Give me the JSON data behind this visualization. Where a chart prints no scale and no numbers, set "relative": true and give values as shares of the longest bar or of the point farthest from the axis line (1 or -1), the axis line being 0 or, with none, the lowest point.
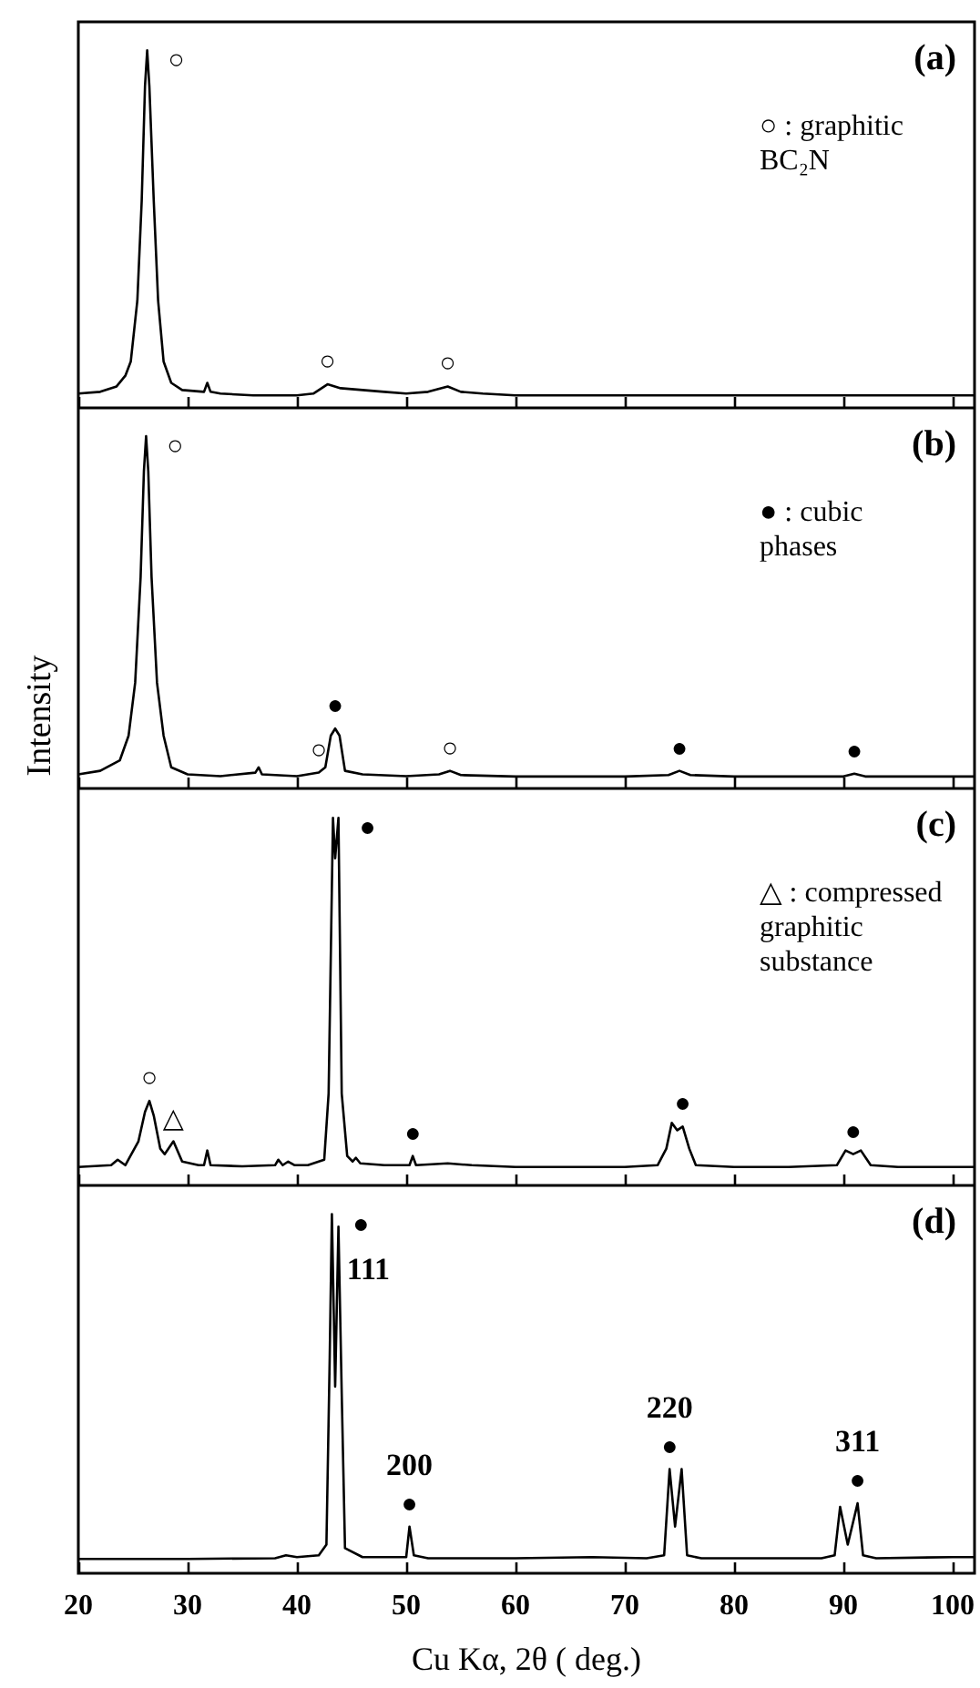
{
  "chart_data": [
    {
      "type": "line",
      "relative": true,
      "xlim": [
        20,
        102
      ],
      "xticks": [
        20,
        30,
        40,
        50,
        60,
        70,
        80,
        90,
        100
      ],
      "tick_labels": false,
      "x": [
        20,
        22,
        23.5,
        24.3,
        24.8,
        25.4,
        25.8,
        26.1,
        26.3,
        26.5,
        26.9,
        27.3,
        27.8,
        28.5,
        29.5,
        31.5,
        31.8,
        32.1,
        33,
        36,
        40,
        41.5,
        42.8,
        44,
        46,
        48,
        50,
        52,
        53.8,
        55,
        57,
        60,
        65,
        70,
        75,
        80,
        85,
        90,
        95,
        100,
        102
      ],
      "series": [
        {
          "color": "#000000",
          "values": [
            0.04,
            0.045,
            0.06,
            0.09,
            0.13,
            0.3,
            0.58,
            0.9,
            1,
            0.9,
            0.58,
            0.3,
            0.13,
            0.07,
            0.05,
            0.045,
            0.07,
            0.045,
            0.04,
            0.035,
            0.035,
            0.04,
            0.066,
            0.055,
            0.05,
            0.045,
            0.04,
            0.045,
            0.06,
            0.045,
            0.04,
            0.035,
            0.035,
            0.035,
            0.035,
            0.035,
            0.035,
            0.035,
            0.035,
            0.035,
            0.035
          ]
        }
      ],
      "annotations": [
        "(a)",
        "○ : graphitic BC₂N",
        {
          "text": "○",
          "x": 26.3,
          "y": 1
        },
        {
          "text": "○",
          "x": 42.8,
          "y": 0.066
        },
        {
          "text": "○",
          "x": 53.8,
          "y": 0.06
        }
      ]
    },
    {
      "type": "line",
      "relative": true,
      "xlim": [
        20,
        102
      ],
      "xticks": [
        20,
        30,
        40,
        50,
        60,
        70,
        80,
        90,
        100
      ],
      "tick_labels": false,
      "ylabel": "Intensity",
      "x": [
        20,
        22,
        23.8,
        24.6,
        25.2,
        25.7,
        26.0,
        26.2,
        26.4,
        26.7,
        27.2,
        27.8,
        28.5,
        30,
        33,
        36.2,
        36.5,
        36.8,
        40,
        42,
        42.6,
        43.1,
        43.5,
        43.9,
        44.4,
        46,
        50,
        53,
        54,
        55,
        60,
        65,
        70,
        74,
        75,
        76,
        80,
        85,
        90,
        91,
        92,
        95,
        100,
        102
      ],
      "series": [
        {
          "color": "#000000",
          "values": [
            0.04,
            0.05,
            0.08,
            0.15,
            0.3,
            0.6,
            0.9,
            1,
            0.9,
            0.6,
            0.3,
            0.15,
            0.06,
            0.04,
            0.035,
            0.045,
            0.06,
            0.04,
            0.035,
            0.045,
            0.06,
            0.15,
            0.17,
            0.15,
            0.05,
            0.04,
            0.035,
            0.04,
            0.05,
            0.038,
            0.034,
            0.034,
            0.034,
            0.038,
            0.05,
            0.038,
            0.034,
            0.034,
            0.034,
            0.042,
            0.034,
            0.034,
            0.034,
            0.034
          ]
        }
      ],
      "annotations": [
        "(b)",
        "● : cubic phases",
        {
          "text": "○",
          "x": 26.2,
          "y": 1
        },
        {
          "text": "○",
          "x": 42,
          "y": 0.045
        },
        {
          "text": "●",
          "x": 43.5,
          "y": 0.17
        },
        {
          "text": "○",
          "x": 54,
          "y": 0.05
        },
        {
          "text": "●",
          "x": 75,
          "y": 0.05
        },
        {
          "text": "●",
          "x": 91,
          "y": 0.042
        }
      ]
    },
    {
      "type": "line",
      "relative": true,
      "xlim": [
        20,
        102
      ],
      "xticks": [
        20,
        30,
        40,
        50,
        60,
        70,
        80,
        90,
        100
      ],
      "tick_labels": false,
      "x": [
        20,
        23,
        23.6,
        24.3,
        25.5,
        26.1,
        26.5,
        26.9,
        27.5,
        27.9,
        28.7,
        29.5,
        31,
        31.5,
        31.8,
        32.1,
        35,
        38,
        38.3,
        38.7,
        39.2,
        39.8,
        41,
        42.5,
        42.9,
        43.3,
        43.5,
        43.8,
        44.1,
        44.6,
        45.1,
        45.4,
        45.8,
        48,
        50.3,
        50.6,
        50.9,
        53.8,
        56,
        60,
        65,
        70,
        73,
        73.8,
        74.3,
        74.8,
        75.3,
        75.9,
        76.5,
        80,
        85,
        89.4,
        90.2,
        90.9,
        91.6,
        92.5,
        95,
        100,
        102
      ],
      "series": [
        {
          "color": "#000000",
          "values": [
            0.05,
            0.055,
            0.07,
            0.055,
            0.12,
            0.2,
            0.23,
            0.19,
            0.1,
            0.085,
            0.12,
            0.065,
            0.055,
            0.055,
            0.095,
            0.055,
            0.052,
            0.055,
            0.07,
            0.055,
            0.065,
            0.055,
            0.055,
            0.07,
            0.25,
            1,
            0.89,
            1,
            0.25,
            0.08,
            0.065,
            0.075,
            0.06,
            0.055,
            0.055,
            0.08,
            0.055,
            0.06,
            0.055,
            0.05,
            0.05,
            0.05,
            0.055,
            0.1,
            0.17,
            0.15,
            0.16,
            0.1,
            0.055,
            0.05,
            0.05,
            0.055,
            0.095,
            0.085,
            0.095,
            0.055,
            0.05,
            0.05,
            0.05
          ]
        }
      ],
      "annotations": [
        "(c)",
        "△ : compressed graphitic substance",
        {
          "text": "●",
          "x": 43.8,
          "y": 1
        },
        {
          "text": "○",
          "x": 26.5,
          "y": 0.23
        },
        {
          "text": "△",
          "x": 28.7,
          "y": 0.12
        },
        {
          "text": "●",
          "x": 50.6,
          "y": 0.08
        },
        {
          "text": "●",
          "x": 75.3,
          "y": 0.16
        },
        {
          "text": "●",
          "x": 90.9,
          "y": 0.085
        }
      ]
    },
    {
      "type": "line",
      "relative": true,
      "xlim": [
        20,
        102
      ],
      "xticks": [
        20,
        30,
        40,
        50,
        60,
        70,
        80,
        90,
        100
      ],
      "tick_labels": "x",
      "xlabel": "Cu Kα, 2θ ( deg.)",
      "x": [
        20,
        30,
        38,
        39,
        40,
        42,
        42.7,
        43.0,
        43.2,
        43.5,
        43.8,
        44.1,
        44.4,
        46,
        50,
        50.3,
        50.7,
        52,
        60,
        67,
        72,
        73.6,
        74.1,
        74.6,
        75.2,
        75.7,
        77,
        80,
        88,
        89.2,
        89.7,
        90.4,
        91.3,
        91.8,
        93,
        100,
        102
      ],
      "series": [
        {
          "color": "#000000",
          "values": [
            0.04,
            0.04,
            0.042,
            0.05,
            0.045,
            0.05,
            0.08,
            0.6,
            1,
            0.52,
            0.965,
            0.5,
            0.07,
            0.045,
            0.045,
            0.13,
            0.05,
            0.042,
            0.042,
            0.045,
            0.042,
            0.05,
            0.29,
            0.13,
            0.29,
            0.05,
            0.042,
            0.042,
            0.042,
            0.05,
            0.185,
            0.08,
            0.195,
            0.05,
            0.042,
            0.045,
            0.045
          ]
        }
      ],
      "annotations": [
        "(d)",
        {
          "text": "●",
          "x": 43.2,
          "y": 1
        },
        {
          "text": "111",
          "x": 43.2,
          "y": 1
        },
        {
          "text": "●",
          "x": 50.3,
          "y": 0.13
        },
        {
          "text": "200",
          "x": 50.3,
          "y": 0.13
        },
        {
          "text": "●",
          "x": 74.1,
          "y": 0.29
        },
        {
          "text": "220",
          "x": 74.1,
          "y": 0.29
        },
        {
          "text": "●",
          "x": 91.3,
          "y": 0.195
        },
        {
          "text": "311",
          "x": 91.3,
          "y": 0.195
        }
      ]
    }
  ]
}
